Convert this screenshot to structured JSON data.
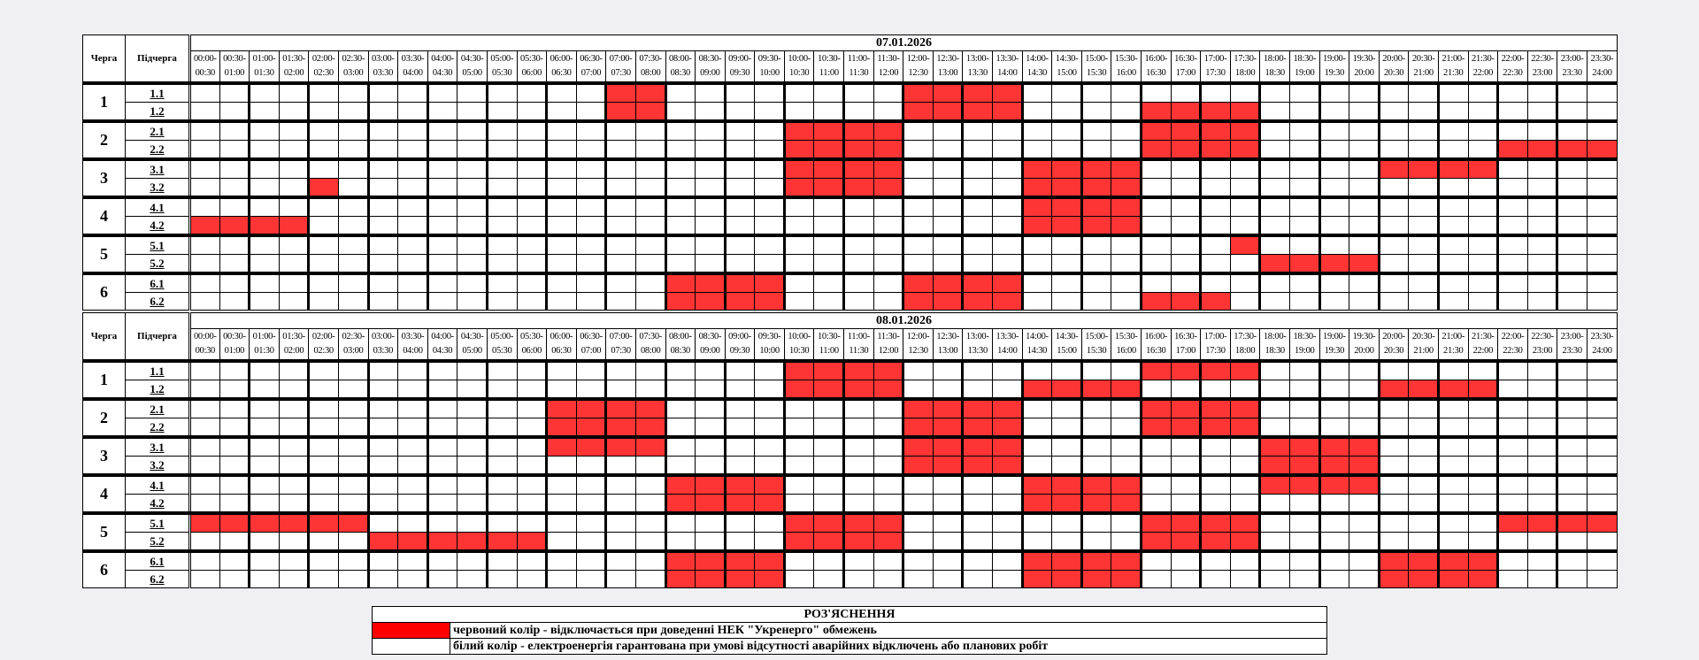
{
  "headers": {
    "queue": "Черга",
    "subqueue": "Підчерга"
  },
  "slots": [
    "00:00-00:30",
    "00:30-01:00",
    "01:00-01:30",
    "01:30-02:00",
    "02:00-02:30",
    "02:30-03:00",
    "03:00-03:30",
    "03:30-04:00",
    "04:00-04:30",
    "04:30-05:00",
    "05:00-05:30",
    "05:30-06:00",
    "06:00-06:30",
    "06:30-07:00",
    "07:00-07:30",
    "07:30-08:00",
    "08:00-08:30",
    "08:30-09:00",
    "09:00-09:30",
    "09:30-10:00",
    "10:00-10:30",
    "10:30-11:00",
    "11:00-11:30",
    "11:30-12:00",
    "12:00-12:30",
    "12:30-13:00",
    "13:00-13:30",
    "13:30-14:00",
    "14:00-14:30",
    "14:30-15:00",
    "15:00-15:30",
    "15:30-16:00",
    "16:00-16:30",
    "16:30-17:00",
    "17:00-17:30",
    "17:30-18:00",
    "18:00-18:30",
    "18:30-19:00",
    "19:00-19:30",
    "19:30-20:00",
    "20:00-20:30",
    "20:30-21:00",
    "21:00-21:30",
    "21:30-22:00",
    "22:00-22:30",
    "22:30-23:00",
    "23:00-23:30",
    "23:30-24:00"
  ],
  "colors": {
    "off": "#ff3434",
    "on": "#ffffff",
    "legend_red": "#ff0000"
  },
  "schedules": [
    {
      "date": "07.01.2026",
      "queues": [
        {
          "queue": "1",
          "subqueues": [
            {
              "label": "1.1",
              "off": [
                "07:00-08:00",
                "12:00-14:00"
              ]
            },
            {
              "label": "1.2",
              "off": [
                "07:00-08:00",
                "12:00-14:00",
                "16:00-18:00"
              ]
            }
          ]
        },
        {
          "queue": "2",
          "subqueues": [
            {
              "label": "2.1",
              "off": [
                "10:00-12:00",
                "16:00-18:00"
              ]
            },
            {
              "label": "2.2",
              "off": [
                "10:00-12:00",
                "16:00-18:00",
                "22:00-24:00"
              ]
            }
          ]
        },
        {
          "queue": "3",
          "subqueues": [
            {
              "label": "3.1",
              "off": [
                "10:00-12:00",
                "14:00-16:00",
                "20:00-22:00"
              ]
            },
            {
              "label": "3.2",
              "off": [
                "02:00-02:30",
                "10:00-12:00",
                "14:00-16:00"
              ]
            }
          ]
        },
        {
          "queue": "4",
          "subqueues": [
            {
              "label": "4.1",
              "off": [
                "14:00-16:00"
              ]
            },
            {
              "label": "4.2",
              "off": [
                "00:00-02:00",
                "14:00-16:00"
              ]
            }
          ]
        },
        {
          "queue": "5",
          "subqueues": [
            {
              "label": "5.1",
              "off": [
                "17:30-18:00"
              ]
            },
            {
              "label": "5.2",
              "off": [
                "18:00-20:00"
              ]
            }
          ]
        },
        {
          "queue": "6",
          "subqueues": [
            {
              "label": "6.1",
              "off": [
                "08:00-10:00",
                "12:00-14:00"
              ]
            },
            {
              "label": "6.2",
              "off": [
                "08:00-10:00",
                "12:00-14:00",
                "16:00-17:30"
              ]
            }
          ]
        }
      ]
    },
    {
      "date": "08.01.2026",
      "queues": [
        {
          "queue": "1",
          "subqueues": [
            {
              "label": "1.1",
              "off": [
                "10:00-12:00",
                "16:00-18:00"
              ]
            },
            {
              "label": "1.2",
              "off": [
                "10:00-12:00",
                "14:00-16:00",
                "20:00-22:00"
              ]
            }
          ]
        },
        {
          "queue": "2",
          "subqueues": [
            {
              "label": "2.1",
              "off": [
                "06:00-08:00",
                "12:00-14:00",
                "16:00-18:00"
              ]
            },
            {
              "label": "2.2",
              "off": [
                "06:00-08:00",
                "12:00-14:00",
                "16:00-18:00"
              ]
            }
          ]
        },
        {
          "queue": "3",
          "subqueues": [
            {
              "label": "3.1",
              "off": [
                "06:00-08:00",
                "12:00-14:00",
                "18:00-20:00"
              ]
            },
            {
              "label": "3.2",
              "off": [
                "12:00-14:00",
                "18:00-20:00"
              ]
            }
          ]
        },
        {
          "queue": "4",
          "subqueues": [
            {
              "label": "4.1",
              "off": [
                "08:00-10:00",
                "14:00-16:00",
                "18:00-20:00"
              ]
            },
            {
              "label": "4.2",
              "off": [
                "08:00-10:00",
                "14:00-16:00"
              ]
            }
          ]
        },
        {
          "queue": "5",
          "subqueues": [
            {
              "label": "5.1",
              "off": [
                "00:00-03:00",
                "10:00-12:00",
                "16:00-18:00",
                "22:00-24:00"
              ]
            },
            {
              "label": "5.2",
              "off": [
                "03:00-06:00",
                "10:00-12:00",
                "16:00-18:00"
              ]
            }
          ]
        },
        {
          "queue": "6",
          "subqueues": [
            {
              "label": "6.1",
              "off": [
                "08:00-10:00",
                "14:00-16:00",
                "20:00-22:00"
              ]
            },
            {
              "label": "6.2",
              "off": [
                "08:00-10:00",
                "14:00-16:00",
                "20:00-22:00"
              ]
            }
          ]
        }
      ]
    }
  ],
  "legend": {
    "title": "РОЗ'ЯСНЕННЯ",
    "items": [
      {
        "color": "#ff0000",
        "text": "червоний колір - відключається при доведенні НЕК \"Укренерго\" обмежень"
      },
      {
        "color": "#ffffff",
        "text": "білий колір - електроенергія гарантована при умові відсутності аварійних відключень або планових робіт"
      }
    ]
  }
}
